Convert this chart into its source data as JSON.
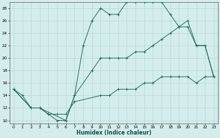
{
  "xlabel": "Humidex (Indice chaleur)",
  "background_color": "#d4edec",
  "line_color": "#1f6b63",
  "grid_color": "#b8dbd9",
  "xlim": [
    -0.5,
    23.5
  ],
  "ylim": [
    9.5,
    29
  ],
  "xticks": [
    0,
    1,
    2,
    3,
    4,
    5,
    6,
    7,
    8,
    9,
    10,
    11,
    12,
    13,
    14,
    15,
    16,
    17,
    18,
    19,
    20,
    21,
    22,
    23
  ],
  "yticks": [
    10,
    12,
    14,
    16,
    18,
    20,
    22,
    24,
    26,
    28
  ],
  "line_top_x": [
    0,
    1,
    2,
    3,
    4,
    5,
    6,
    7,
    8,
    9,
    10,
    11,
    12,
    13,
    14,
    15,
    16,
    17,
    18,
    19,
    20,
    21,
    22,
    23
  ],
  "line_top_y": [
    15,
    14,
    12,
    12,
    11,
    10,
    10,
    14,
    22,
    26,
    28,
    27,
    27,
    29,
    29,
    29,
    29,
    29,
    27,
    25,
    25,
    22,
    22,
    17
  ],
  "line_mid_x": [
    0,
    2,
    3,
    6,
    7,
    9,
    10,
    11,
    12,
    13,
    14,
    15,
    16,
    17,
    18,
    19,
    20,
    21,
    22,
    23
  ],
  "line_mid_y": [
    15,
    12,
    12,
    10,
    14,
    18,
    20,
    20,
    20,
    20,
    21,
    21,
    22,
    23,
    24,
    25,
    26,
    22,
    22,
    17
  ],
  "line_bot_x": [
    0,
    2,
    3,
    4,
    5,
    6,
    7,
    10,
    11,
    12,
    13,
    14,
    15,
    16,
    17,
    18,
    19,
    20,
    21,
    22,
    23
  ],
  "line_bot_y": [
    15,
    12,
    12,
    11,
    11,
    11,
    13,
    14,
    14,
    15,
    15,
    15,
    16,
    16,
    17,
    17,
    17,
    17,
    16,
    17,
    17
  ]
}
